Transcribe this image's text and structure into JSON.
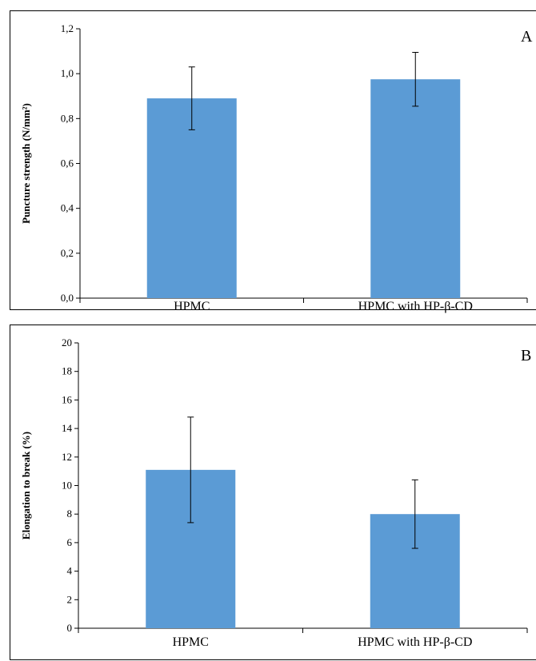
{
  "chart_data": [
    {
      "type": "bar",
      "panel_label": "A",
      "categories": [
        "HPMC",
        "HPMC with HP-β-CD"
      ],
      "values": [
        0.89,
        0.975
      ],
      "errors": [
        0.14,
        0.12
      ],
      "ylabel": "Puncture strength (N/mm²)",
      "ylim": [
        0,
        1.2
      ],
      "yticks": [
        0,
        0.2,
        0.4,
        0.6,
        0.8,
        1.0,
        1.2
      ],
      "ytick_labels": [
        "0,0",
        "0,2",
        "0,4",
        "0,6",
        "0,8",
        "1,0",
        "1,2"
      ],
      "bar_color": "#5b9bd5",
      "grid": false
    },
    {
      "type": "bar",
      "panel_label": "B",
      "categories": [
        "HPMC",
        "HPMC with HP-β-CD"
      ],
      "values": [
        11.1,
        8.0
      ],
      "errors": [
        3.7,
        2.4
      ],
      "ylabel": "Elongation to break (%)",
      "ylim": [
        0,
        20
      ],
      "yticks": [
        0,
        2,
        4,
        6,
        8,
        10,
        12,
        14,
        16,
        18,
        20
      ],
      "ytick_labels": [
        "0",
        "2",
        "4",
        "6",
        "8",
        "10",
        "12",
        "14",
        "16",
        "18",
        "20"
      ],
      "bar_color": "#5b9bd5",
      "grid": false
    }
  ]
}
